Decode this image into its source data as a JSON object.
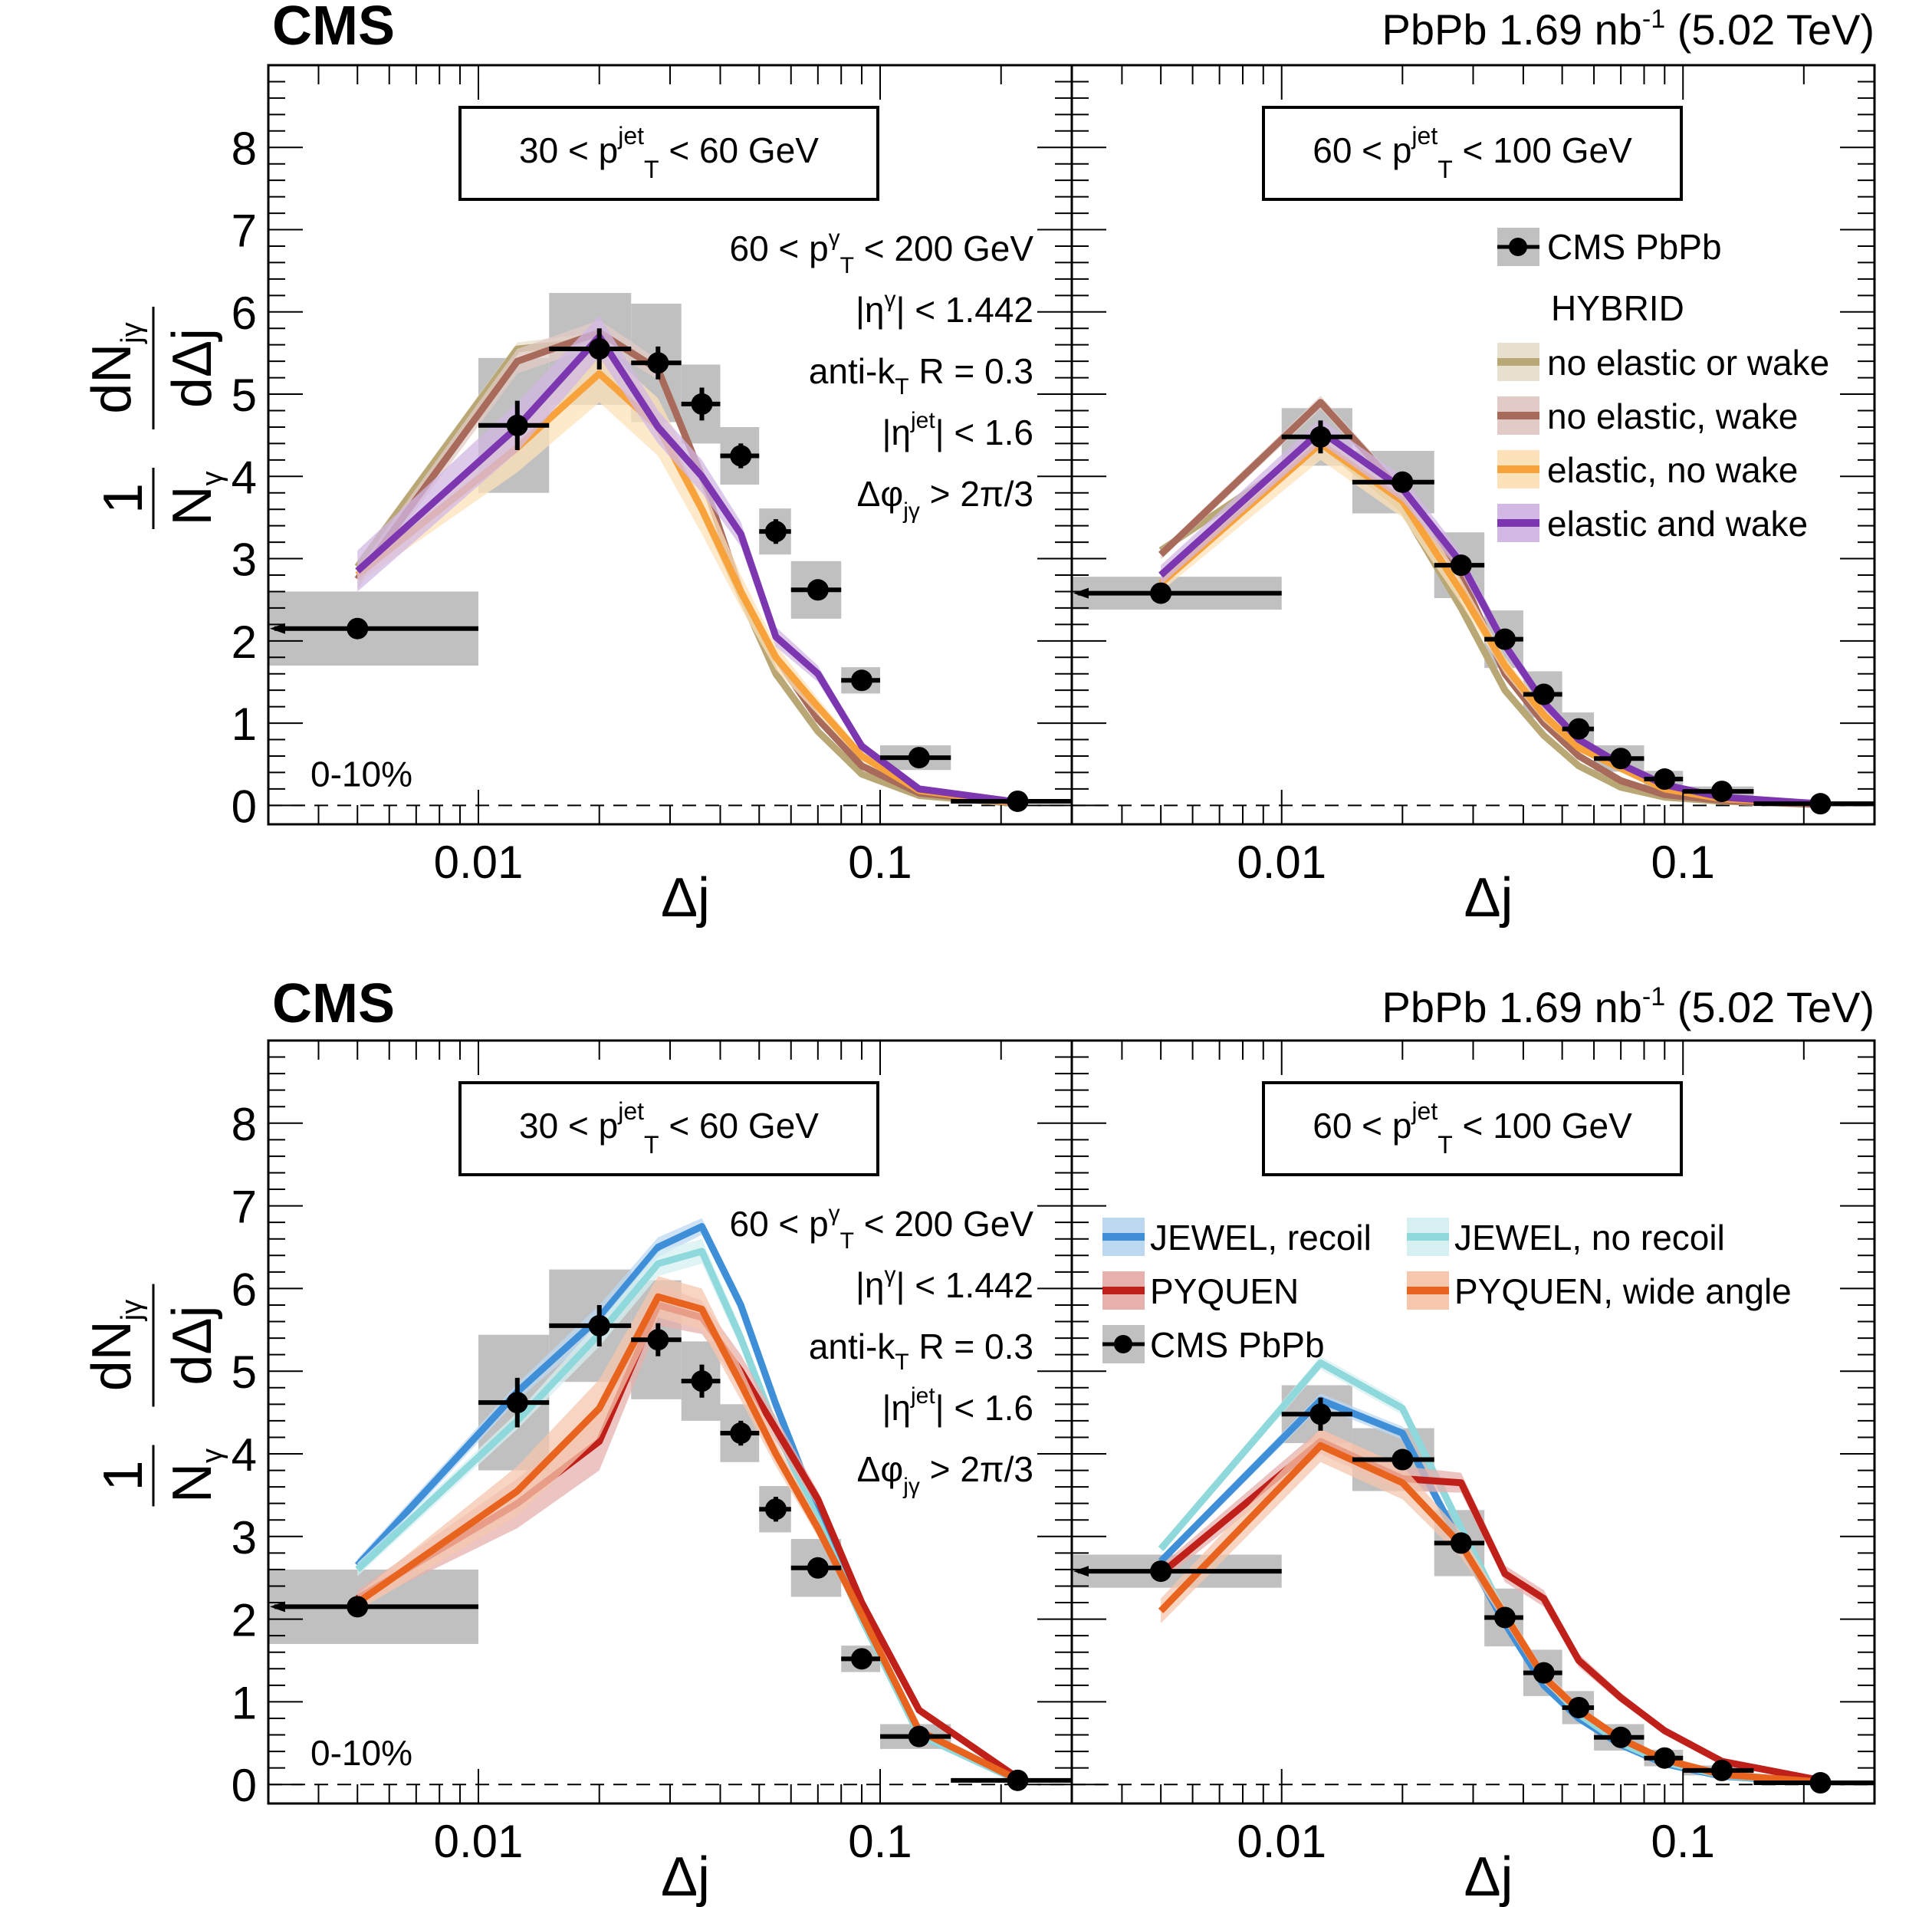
{
  "chart_data": [
    {
      "type": "line",
      "row": "top",
      "header": {
        "experiment": "CMS",
        "lumi_text": "PbPb 1.69 nb",
        "lumi_sup": "-1",
        "energy": "(5.02 TeV)"
      },
      "ylabel": "1/N_gamma dN_jgamma/dDelta j",
      "xlabel": "Δj",
      "xscale": "log",
      "xlim": [
        0.003,
        0.3
      ],
      "ylim": [
        -0.23,
        9.0
      ],
      "x_tick_labels": [
        "0.01",
        "0.1"
      ],
      "y_tick_labels": [
        "0",
        "1",
        "2",
        "3",
        "4",
        "5",
        "6",
        "7",
        "8"
      ],
      "selection_lines": [
        "60 < p_T^γ < 200 GeV",
        "|η^γ| < 1.442",
        "anti-k_T R = 0.3",
        "|η^jet| < 1.6",
        "Δφ_jγ > 2π/3"
      ],
      "centrality": "0-10%",
      "x": [
        0.005,
        0.0125,
        0.02,
        0.028,
        0.036,
        0.045,
        0.055,
        0.07,
        0.09,
        0.125,
        0.22
      ],
      "x_bin_edges": [
        0.003,
        0.01,
        0.015,
        0.024,
        0.032,
        0.04,
        0.05,
        0.06,
        0.08,
        0.1,
        0.15,
        0.3
      ],
      "legend": {
        "placement": "top-right (right panel)",
        "data_label": "CMS PbPb",
        "group_title": "HYBRID",
        "entries": [
          {
            "name": "no elastic or wake",
            "color": "#b9a876",
            "band": "#e8e1cf"
          },
          {
            "name": "no elastic, wake",
            "color": "#a86a5b",
            "band": "#e2cbc6"
          },
          {
            "name": "elastic, no wake",
            "color": "#f7a23a",
            "band": "#fde1b8"
          },
          {
            "name": "elastic and wake",
            "color": "#7c36b0",
            "band": "#d2b8e4"
          }
        ]
      },
      "panels": [
        {
          "jet_pt_label": "30 < p_T^jet < 60 GeV",
          "data": {
            "y": [
              2.15,
              4.62,
              5.55,
              5.38,
              4.88,
              4.25,
              3.33,
              2.62,
              1.52,
              0.58,
              0.05
            ],
            "stat": [
              0.08,
              0.3,
              0.25,
              0.2,
              0.2,
              0.15,
              0.15,
              0.08,
              0.06,
              0.05,
              0.02
            ],
            "syst": [
              0.45,
              0.82,
              0.68,
              0.72,
              0.48,
              0.35,
              0.28,
              0.35,
              0.16,
              0.15,
              0.02
            ]
          },
          "series": [
            {
              "name": "no elastic or wake",
              "values": [
                2.9,
                5.55,
                5.65,
                4.7,
                3.6,
                2.55,
                1.6,
                0.9,
                0.38,
                0.12,
                0.02
              ],
              "unc": [
                0.08,
                0.08,
                0.1,
                0.1,
                0.08,
                0.07,
                0.05,
                0.04,
                0.03,
                0.02,
                0.01
              ]
            },
            {
              "name": "no elastic, wake",
              "values": [
                2.75,
                5.4,
                5.75,
                5.3,
                4.0,
                2.6,
                1.8,
                1.05,
                0.48,
                0.15,
                0.03
              ],
              "unc": [
                0.12,
                0.15,
                0.15,
                0.12,
                0.1,
                0.08,
                0.06,
                0.05,
                0.03,
                0.02,
                0.01
              ]
            },
            {
              "name": "elastic, no wake",
              "values": [
                2.8,
                4.35,
                5.25,
                4.6,
                3.6,
                2.6,
                1.8,
                1.2,
                0.6,
                0.18,
                0.03
              ],
              "unc": [
                0.1,
                0.3,
                0.35,
                0.35,
                0.3,
                0.2,
                0.15,
                0.1,
                0.06,
                0.03,
                0.01
              ]
            },
            {
              "name": "elastic and wake",
              "values": [
                2.85,
                4.6,
                5.7,
                4.6,
                4.0,
                3.3,
                2.05,
                1.6,
                0.72,
                0.2,
                0.04
              ],
              "unc": [
                0.25,
                0.3,
                0.25,
                0.2,
                0.2,
                0.15,
                0.12,
                0.1,
                0.06,
                0.03,
                0.01
              ]
            }
          ]
        },
        {
          "jet_pt_label": "60 < p_T^jet < 100 GeV",
          "data": {
            "y": [
              2.58,
              4.48,
              3.93,
              2.92,
              2.02,
              1.35,
              0.93,
              0.57,
              0.32,
              0.17,
              0.02
            ],
            "stat": [
              0.1,
              0.2,
              0.12,
              0.08,
              0.06,
              0.05,
              0.04,
              0.04,
              0.03,
              0.02,
              0.01
            ],
            "syst": [
              0.2,
              0.35,
              0.38,
              0.4,
              0.35,
              0.28,
              0.2,
              0.16,
              0.1,
              0.06,
              0.01
            ]
          },
          "series": [
            {
              "name": "no elastic or wake",
              "values": [
                3.1,
                4.4,
                3.6,
                2.4,
                1.4,
                0.85,
                0.48,
                0.22,
                0.1,
                0.05,
                0.01
              ],
              "unc": [
                0.05,
                0.06,
                0.06,
                0.05,
                0.04,
                0.03,
                0.02,
                0.02,
                0.01,
                0.01,
                0.01
              ]
            },
            {
              "name": "no elastic, wake",
              "values": [
                3.05,
                4.9,
                3.8,
                2.8,
                1.6,
                1.0,
                0.6,
                0.3,
                0.13,
                0.06,
                0.01
              ],
              "unc": [
                0.06,
                0.08,
                0.08,
                0.06,
                0.05,
                0.04,
                0.03,
                0.02,
                0.01,
                0.01,
                0.01
              ]
            },
            {
              "name": "elastic, no wake",
              "values": [
                2.7,
                4.4,
                3.7,
                2.6,
                1.7,
                1.1,
                0.7,
                0.45,
                0.2,
                0.08,
                0.02
              ],
              "unc": [
                0.1,
                0.2,
                0.2,
                0.15,
                0.1,
                0.08,
                0.05,
                0.04,
                0.02,
                0.01,
                0.01
              ]
            },
            {
              "name": "elastic and wake",
              "values": [
                2.8,
                4.55,
                3.85,
                2.95,
                1.95,
                1.25,
                0.8,
                0.5,
                0.25,
                0.1,
                0.02
              ],
              "unc": [
                0.12,
                0.15,
                0.15,
                0.12,
                0.1,
                0.08,
                0.05,
                0.04,
                0.02,
                0.01,
                0.01
              ]
            }
          ]
        }
      ]
    },
    {
      "type": "line",
      "row": "bottom",
      "header": {
        "experiment": "CMS",
        "lumi_text": "PbPb 1.69 nb",
        "lumi_sup": "-1",
        "energy": "(5.02 TeV)"
      },
      "ylabel": "1/N_gamma dN_jgamma/dDelta j",
      "xlabel": "Δj",
      "xscale": "log",
      "xlim": [
        0.003,
        0.3
      ],
      "ylim": [
        -0.23,
        9.0
      ],
      "x_tick_labels": [
        "0.01",
        "0.1"
      ],
      "y_tick_labels": [
        "0",
        "1",
        "2",
        "3",
        "4",
        "5",
        "6",
        "7",
        "8"
      ],
      "selection_lines": [
        "60 < p_T^γ < 200 GeV",
        "|η^γ| < 1.442",
        "anti-k_T R = 0.3",
        "|η^jet| < 1.6",
        "Δφ_jγ > 2π/3"
      ],
      "centrality": "0-10%",
      "x": [
        0.005,
        0.0125,
        0.02,
        0.028,
        0.036,
        0.045,
        0.055,
        0.07,
        0.09,
        0.125,
        0.22
      ],
      "x_bin_edges": [
        0.003,
        0.01,
        0.015,
        0.024,
        0.032,
        0.04,
        0.05,
        0.06,
        0.08,
        0.1,
        0.15,
        0.3
      ],
      "legend": {
        "placement": "top (right panel, two columns)",
        "data_label": "CMS PbPb",
        "entries": [
          {
            "name": "JEWEL, recoil",
            "color": "#3f8fd8",
            "band": "#bcd8f0"
          },
          {
            "name": "JEWEL, no recoil",
            "color": "#8fd8dc",
            "band": "#d6f0f1"
          },
          {
            "name": "PYQUEN",
            "color": "#c0201a",
            "band": "#e6b1ad"
          },
          {
            "name": "PYQUEN, wide angle",
            "color": "#e8641e",
            "band": "#f6c7ad"
          }
        ]
      },
      "panels": [
        {
          "jet_pt_label": "30 < p_T^jet < 60 GeV",
          "data": {
            "y": [
              2.15,
              4.62,
              5.55,
              5.38,
              4.88,
              4.25,
              3.33,
              2.62,
              1.52,
              0.58,
              0.05
            ],
            "stat": [
              0.08,
              0.3,
              0.25,
              0.2,
              0.2,
              0.15,
              0.15,
              0.08,
              0.06,
              0.05,
              0.02
            ],
            "syst": [
              0.45,
              0.82,
              0.68,
              0.72,
              0.48,
              0.35,
              0.28,
              0.35,
              0.16,
              0.15,
              0.02
            ]
          },
          "series": [
            {
              "name": "JEWEL, recoil",
              "values": [
                2.65,
                4.75,
                5.65,
                6.5,
                6.75,
                5.8,
                4.6,
                3.3,
                2.05,
                0.6,
                0.05
              ],
              "unc": [
                0.08,
                0.1,
                0.15,
                0.12,
                0.1,
                0.1,
                0.08,
                0.06,
                0.05,
                0.03,
                0.01
              ]
            },
            {
              "name": "JEWEL, no recoil",
              "values": [
                2.6,
                4.4,
                5.45,
                6.3,
                6.45,
                5.4,
                4.3,
                3.2,
                2.0,
                0.6,
                0.05
              ],
              "unc": [
                0.08,
                0.1,
                0.15,
                0.15,
                0.15,
                0.12,
                0.1,
                0.06,
                0.05,
                0.03,
                0.01
              ]
            },
            {
              "name": "PYQUEN",
              "values": [
                2.25,
                3.4,
                4.15,
                5.8,
                5.65,
                5.0,
                4.3,
                3.45,
                2.2,
                0.9,
                0.08
              ],
              "unc": [
                0.1,
                0.3,
                0.35,
                0.25,
                0.2,
                0.2,
                0.15,
                0.1,
                0.06,
                0.04,
                0.01
              ]
            },
            {
              "name": "PYQUEN, wide angle",
              "values": [
                2.2,
                3.55,
                4.55,
                5.9,
                5.75,
                4.85,
                4.0,
                3.1,
                2.05,
                0.65,
                0.06
              ],
              "unc": [
                0.1,
                0.3,
                0.35,
                0.25,
                0.25,
                0.2,
                0.15,
                0.1,
                0.06,
                0.03,
                0.01
              ]
            }
          ]
        },
        {
          "jet_pt_label": "60 < p_T^jet < 100 GeV",
          "data": {
            "y": [
              2.58,
              4.48,
              3.93,
              2.92,
              2.02,
              1.35,
              0.93,
              0.57,
              0.32,
              0.17,
              0.02
            ],
            "stat": [
              0.1,
              0.2,
              0.12,
              0.08,
              0.06,
              0.05,
              0.04,
              0.04,
              0.03,
              0.02,
              0.01
            ],
            "syst": [
              0.2,
              0.35,
              0.38,
              0.4,
              0.35,
              0.28,
              0.2,
              0.16,
              0.1,
              0.06,
              0.01
            ]
          },
          "series": [
            {
              "name": "JEWEL, recoil",
              "values": [
                2.7,
                4.65,
                4.25,
                2.9,
                1.95,
                1.2,
                0.8,
                0.48,
                0.25,
                0.1,
                0.02
              ],
              "unc": [
                0.05,
                0.08,
                0.08,
                0.06,
                0.05,
                0.04,
                0.03,
                0.02,
                0.02,
                0.01,
                0.01
              ]
            },
            {
              "name": "JEWEL, no recoil",
              "values": [
                2.85,
                5.1,
                4.55,
                3.1,
                2.05,
                1.3,
                0.85,
                0.5,
                0.27,
                0.11,
                0.02
              ],
              "unc": [
                0.05,
                0.08,
                0.08,
                0.06,
                0.05,
                0.04,
                0.03,
                0.02,
                0.02,
                0.01,
                0.01
              ]
            },
            {
              "name": "PYQUEN",
              "values": [
                2.55,
                4.15,
                3.7,
                3.65,
                2.55,
                2.25,
                1.5,
                1.05,
                0.65,
                0.28,
                0.05
              ],
              "unc": [
                0.1,
                0.15,
                0.15,
                0.12,
                0.1,
                0.1,
                0.08,
                0.06,
                0.04,
                0.03,
                0.01
              ]
            },
            {
              "name": "PYQUEN, wide angle",
              "values": [
                2.1,
                4.1,
                3.65,
                2.9,
                2.05,
                1.3,
                0.9,
                0.55,
                0.3,
                0.12,
                0.03
              ],
              "unc": [
                0.15,
                0.2,
                0.2,
                0.15,
                0.1,
                0.08,
                0.06,
                0.04,
                0.03,
                0.02,
                0.01
              ]
            }
          ]
        }
      ]
    }
  ],
  "colors": {
    "data": "#000000",
    "syst_box": "#c0c0c0",
    "axis": "#000000"
  }
}
